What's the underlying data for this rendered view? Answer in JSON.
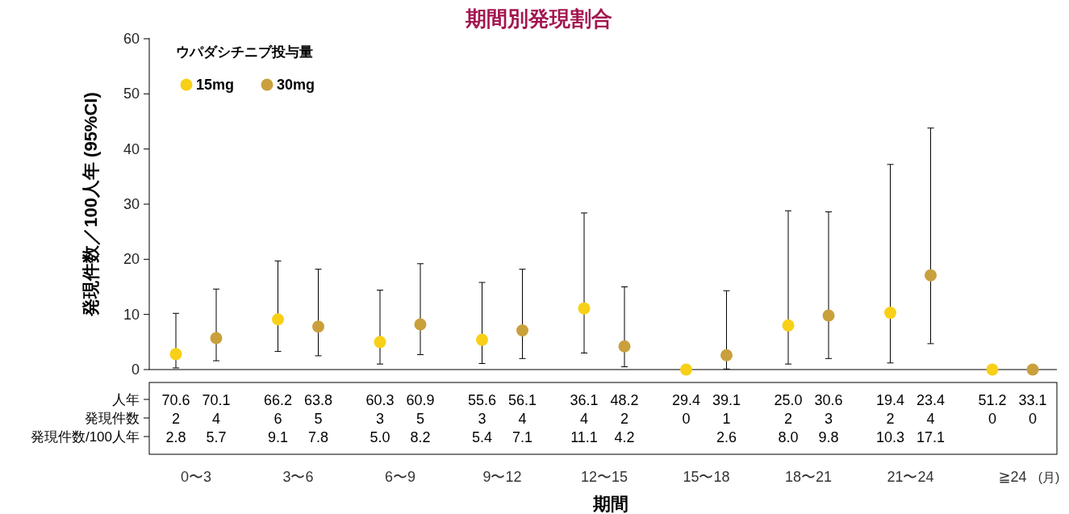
{
  "chart_data": {
    "type": "scatter",
    "title": "期間別発現割合",
    "xlabel": "期間",
    "ylabel": "発現件数／100人年 (95%CI)",
    "legend_title": "ウパダシチニブ投与量",
    "legend": "top left",
    "marker": "circle",
    "categories": [
      "0〜3",
      "3〜6",
      "6〜9",
      "9〜12",
      "12〜15",
      "15〜18",
      "18〜21",
      "21〜24",
      "≧24"
    ],
    "ylim": [
      0,
      60
    ],
    "yticks": [
      0,
      10,
      20,
      30,
      40,
      50,
      60
    ],
    "series": [
      {
        "name": "15mg",
        "color": "#f8d017",
        "values": [
          2.8,
          9.1,
          5.0,
          5.4,
          11.1,
          0,
          8.0,
          10.3,
          0
        ],
        "errors": [
          [
            0.3,
            10.2
          ],
          [
            3.3,
            19.7
          ],
          [
            1.0,
            14.4
          ],
          [
            1.1,
            15.8
          ],
          [
            3.0,
            28.4
          ],
          null,
          [
            1.0,
            28.8
          ],
          [
            1.2,
            37.2
          ],
          null
        ]
      },
      {
        "name": "30mg",
        "color": "#c9a03c",
        "values": [
          5.7,
          7.8,
          8.2,
          7.1,
          4.2,
          2.6,
          9.8,
          17.1,
          0
        ],
        "errors": [
          [
            1.6,
            14.6
          ],
          [
            2.5,
            18.2
          ],
          [
            2.7,
            19.2
          ],
          [
            2.0,
            18.2
          ],
          [
            0.5,
            15.0
          ],
          [
            0.1,
            14.3
          ],
          [
            2.0,
            28.6
          ],
          [
            4.7,
            43.8
          ],
          null
        ]
      }
    ],
    "annotations": [
      "人年",
      "発現件数",
      "発現件数/100人年",
      "(月)",
      "70.6\n2\n2.8",
      "70.1\n4\n5.7",
      "66.2\n6\n9.1",
      "63.8\n5\n7.8",
      "60.3\n3\n5.0",
      "60.9\n5\n8.2",
      "55.6\n3\n5.4",
      "56.1\n4\n7.1",
      "36.1\n4\n11.1",
      "48.2\n2\n4.2",
      "29.4\n0",
      "39.1\n1\n2.6",
      "25.0\n2\n8.0",
      "30.6\n3\n9.8",
      "19.4\n2\n10.3",
      "23.4\n4\n17.1",
      "51.2\n0",
      "33.1\n0"
    ]
  }
}
